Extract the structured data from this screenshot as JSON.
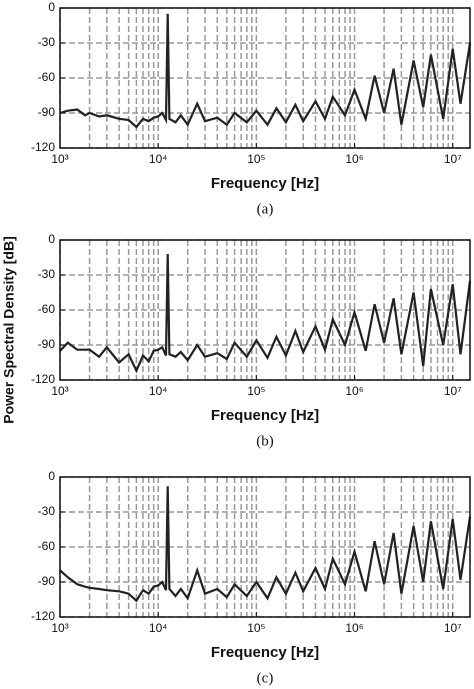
{
  "ylabel": "Power Spectral Density [dB]",
  "chart_data": [
    {
      "type": "line",
      "xlabel": "Frequency [Hz]",
      "caption": "(a)",
      "log_x": true,
      "grid": true,
      "color": "#222222",
      "xlim": [
        1000,
        15000000
      ],
      "ylim": [
        -120,
        0
      ],
      "xticks": [
        {
          "value": 1000,
          "label": "10³"
        },
        {
          "value": 10000,
          "label": "10⁴"
        },
        {
          "value": 100000,
          "label": "10⁵"
        },
        {
          "value": 1000000,
          "label": "10⁶"
        },
        {
          "value": 10000000,
          "label": "10⁷"
        }
      ],
      "xminorticks": [
        2000,
        3000,
        4000,
        5000,
        6000,
        7000,
        8000,
        9000,
        20000,
        30000,
        40000,
        50000,
        60000,
        70000,
        80000,
        90000,
        200000,
        300000,
        400000,
        500000,
        600000,
        700000,
        800000,
        900000,
        2000000,
        3000000,
        4000000,
        5000000,
        6000000,
        7000000,
        8000000,
        9000000
      ],
      "yticks": [
        -120,
        -90,
        -60,
        -30,
        0
      ],
      "x": [
        1000,
        1200,
        1500,
        1800,
        2000,
        2500,
        3000,
        4000,
        5000,
        6000,
        7000,
        8000,
        9000,
        10000,
        11000,
        12000,
        12500,
        13000,
        15000,
        17000,
        20000,
        25000,
        30000,
        40000,
        50000,
        60000,
        80000,
        100000,
        130000,
        160000,
        200000,
        250000,
        300000,
        400000,
        500000,
        600000,
        800000,
        1000000,
        1300000,
        1600000,
        2000000,
        2500000,
        3000000,
        4000000,
        5000000,
        6000000,
        8000000,
        10000000,
        12000000,
        15000000
      ],
      "values": [
        -90,
        -88,
        -87,
        -92,
        -90,
        -93,
        -92,
        -95,
        -96,
        -102,
        -95,
        -97,
        -94,
        -93,
        -90,
        -96,
        -5,
        -95,
        -98,
        -92,
        -100,
        -82,
        -97,
        -94,
        -100,
        -90,
        -98,
        -88,
        -100,
        -86,
        -98,
        -83,
        -97,
        -80,
        -95,
        -76,
        -92,
        -70,
        -95,
        -58,
        -90,
        -52,
        -100,
        -45,
        -85,
        -40,
        -95,
        -35,
        -82,
        -30
      ]
    },
    {
      "type": "line",
      "xlabel": "Frequency [Hz]",
      "caption": "(b)",
      "log_x": true,
      "grid": true,
      "color": "#222222",
      "xlim": [
        1000,
        15000000
      ],
      "ylim": [
        -120,
        0
      ],
      "xticks": [
        {
          "value": 1000,
          "label": "10³"
        },
        {
          "value": 10000,
          "label": "10⁴"
        },
        {
          "value": 100000,
          "label": "10⁵"
        },
        {
          "value": 1000000,
          "label": "10⁶"
        },
        {
          "value": 10000000,
          "label": "10⁷"
        }
      ],
      "xminorticks": [
        2000,
        3000,
        4000,
        5000,
        6000,
        7000,
        8000,
        9000,
        20000,
        30000,
        40000,
        50000,
        60000,
        70000,
        80000,
        90000,
        200000,
        300000,
        400000,
        500000,
        600000,
        700000,
        800000,
        900000,
        2000000,
        3000000,
        4000000,
        5000000,
        6000000,
        7000000,
        8000000,
        9000000
      ],
      "yticks": [
        -120,
        -90,
        -60,
        -30,
        0
      ],
      "x": [
        1000,
        1200,
        1500,
        1800,
        2000,
        2500,
        3000,
        4000,
        5000,
        6000,
        7000,
        8000,
        9000,
        10000,
        11000,
        12000,
        12500,
        13000,
        15000,
        17000,
        20000,
        25000,
        30000,
        40000,
        50000,
        60000,
        80000,
        100000,
        130000,
        160000,
        200000,
        250000,
        300000,
        400000,
        500000,
        600000,
        800000,
        1000000,
        1300000,
        1600000,
        2000000,
        2500000,
        3000000,
        4000000,
        5000000,
        6000000,
        8000000,
        10000000,
        12000000,
        15000000
      ],
      "values": [
        -95,
        -88,
        -94,
        -94,
        -94,
        -100,
        -92,
        -105,
        -98,
        -112,
        -99,
        -104,
        -95,
        -94,
        -92,
        -99,
        -12,
        -98,
        -100,
        -96,
        -103,
        -90,
        -100,
        -97,
        -102,
        -88,
        -100,
        -86,
        -101,
        -83,
        -99,
        -78,
        -96,
        -74,
        -94,
        -68,
        -90,
        -62,
        -95,
        -55,
        -88,
        -50,
        -98,
        -45,
        -108,
        -42,
        -90,
        -38,
        -98,
        -35
      ]
    },
    {
      "type": "line",
      "xlabel": "Frequency [Hz]",
      "caption": "(c)",
      "log_x": true,
      "grid": true,
      "color": "#222222",
      "xlim": [
        1000,
        15000000
      ],
      "ylim": [
        -120,
        0
      ],
      "xticks": [
        {
          "value": 1000,
          "label": "10³"
        },
        {
          "value": 10000,
          "label": "10⁴"
        },
        {
          "value": 100000,
          "label": "10⁵"
        },
        {
          "value": 1000000,
          "label": "10⁶"
        },
        {
          "value": 10000000,
          "label": "10⁷"
        }
      ],
      "xminorticks": [
        2000,
        3000,
        4000,
        5000,
        6000,
        7000,
        8000,
        9000,
        20000,
        30000,
        40000,
        50000,
        60000,
        70000,
        80000,
        90000,
        200000,
        300000,
        400000,
        500000,
        600000,
        700000,
        800000,
        900000,
        2000000,
        3000000,
        4000000,
        5000000,
        6000000,
        7000000,
        8000000,
        9000000
      ],
      "yticks": [
        -120,
        -90,
        -60,
        -30,
        0
      ],
      "x": [
        1000,
        1200,
        1500,
        1800,
        2000,
        2500,
        3000,
        4000,
        5000,
        6000,
        7000,
        8000,
        9000,
        10000,
        11000,
        12000,
        12500,
        13000,
        15000,
        17000,
        20000,
        25000,
        30000,
        40000,
        50000,
        60000,
        80000,
        100000,
        130000,
        160000,
        200000,
        250000,
        300000,
        400000,
        500000,
        600000,
        800000,
        1000000,
        1300000,
        1600000,
        2000000,
        2500000,
        3000000,
        4000000,
        5000000,
        6000000,
        8000000,
        10000000,
        12000000,
        15000000
      ],
      "values": [
        -80,
        -86,
        -92,
        -94,
        -95,
        -96,
        -97,
        -98,
        -100,
        -106,
        -97,
        -100,
        -94,
        -93,
        -90,
        -97,
        -8,
        -96,
        -102,
        -96,
        -104,
        -80,
        -100,
        -96,
        -103,
        -92,
        -102,
        -90,
        -104,
        -86,
        -100,
        -82,
        -98,
        -78,
        -96,
        -70,
        -92,
        -64,
        -98,
        -55,
        -92,
        -48,
        -100,
        -42,
        -90,
        -38,
        -96,
        -36,
        -88,
        -34
      ]
    }
  ]
}
